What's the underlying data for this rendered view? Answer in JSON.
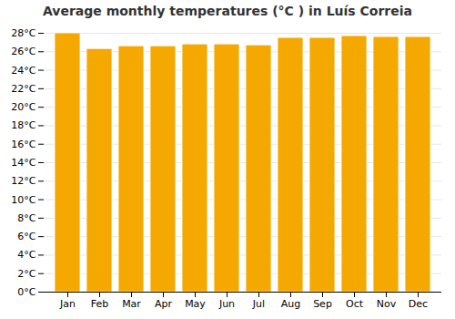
{
  "chart_data": {
    "type": "bar",
    "title": "Average monthly temperatures (°C ) in Luís Correia",
    "categories": [
      "Jan",
      "Feb",
      "Mar",
      "Apr",
      "May",
      "Jun",
      "Jul",
      "Aug",
      "Sep",
      "Oct",
      "Nov",
      "Dec"
    ],
    "values": [
      28.0,
      26.3,
      26.6,
      26.6,
      26.8,
      26.8,
      26.7,
      27.5,
      27.5,
      27.7,
      27.6,
      27.6
    ],
    "color": "#F5A800",
    "ylim": [
      0,
      28
    ],
    "yticks": [
      {
        "value": 0,
        "label": "0°C"
      },
      {
        "value": 2,
        "label": "2°C"
      },
      {
        "value": 4,
        "label": "4°C"
      },
      {
        "value": 6,
        "label": "6°C"
      },
      {
        "value": 8,
        "label": "8°C"
      },
      {
        "value": 10,
        "label": "10°C"
      },
      {
        "value": 12,
        "label": "12°C"
      },
      {
        "value": 14,
        "label": "14°C"
      },
      {
        "value": 16,
        "label": "16°C"
      },
      {
        "value": 18,
        "label": "18°C"
      },
      {
        "value": 20,
        "label": "20°C"
      },
      {
        "value": 22,
        "label": "22°C"
      },
      {
        "value": 24,
        "label": "24°C"
      },
      {
        "value": 26,
        "label": "26°C"
      },
      {
        "value": 28,
        "label": "28°C"
      }
    ],
    "grid": true
  }
}
